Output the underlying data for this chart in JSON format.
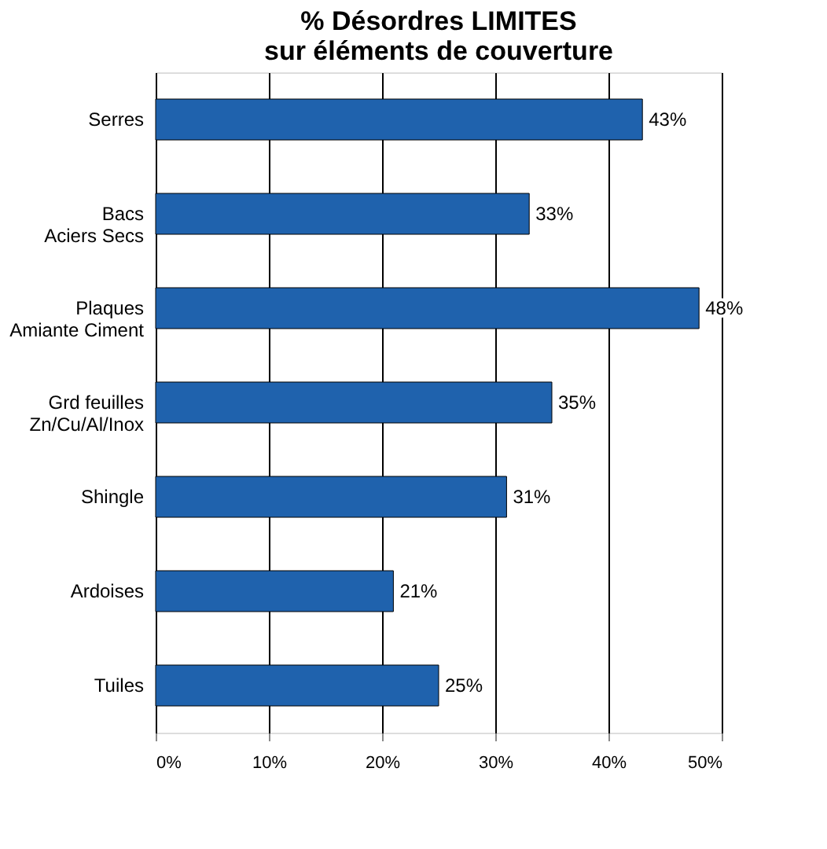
{
  "chart_data": {
    "type": "bar",
    "orientation": "horizontal",
    "title": "% Désordres LIMITES\nsur éléments de couverture",
    "categories": [
      "Serres",
      "Bacs\nAciers Secs",
      "Plaques\nAmiante Ciment",
      "Grd feuilles\nZn/Cu/Al/Inox",
      "Shingle",
      "Ardoises",
      "Tuiles"
    ],
    "values": [
      43,
      33,
      48,
      35,
      31,
      21,
      25
    ],
    "value_labels": [
      "43%",
      "33%",
      "48%",
      "35%",
      "31%",
      "21%",
      "25%"
    ],
    "color": "#1f62ad",
    "xlim": [
      0,
      50
    ],
    "xticks": [
      {
        "value": 0,
        "label": "0%"
      },
      {
        "value": 10,
        "label": "10%"
      },
      {
        "value": 20,
        "label": "20%"
      },
      {
        "value": 30,
        "label": "30%"
      },
      {
        "value": 40,
        "label": "40%"
      },
      {
        "value": 50,
        "label": "50%"
      }
    ],
    "grid": "x"
  }
}
